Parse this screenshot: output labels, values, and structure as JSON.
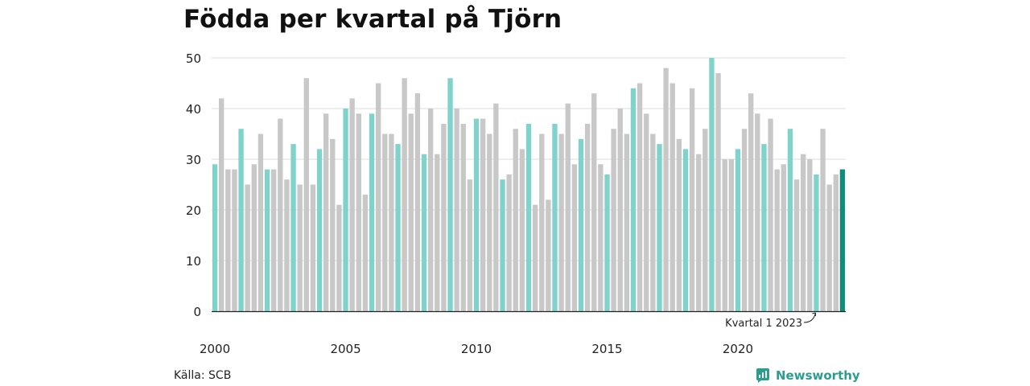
{
  "title": "Födda per kvartal på Tjörn",
  "source": "Källa: SCB",
  "brand": {
    "name": "Newsworthy",
    "logo_icon": "newsworthy-logo-icon",
    "color": "#2a9d8f"
  },
  "annotation": "Kvartal 1 2023",
  "colors": {
    "q1": "#7fd3cb",
    "other": "#c8c8c8",
    "highlight": "#148a7d",
    "grid": "#dddddd",
    "axis": "#222222"
  },
  "chart_data": {
    "type": "bar",
    "title": "Födda per kvartal på Tjörn",
    "xlabel": "",
    "ylabel": "",
    "ylim": [
      0,
      50
    ],
    "yticks": [
      0,
      10,
      20,
      30,
      40,
      50
    ],
    "xtick_labels": [
      "2000",
      "2005",
      "2010",
      "2015",
      "2020"
    ],
    "grid": true,
    "start_year": 2000,
    "highlighted": "Kvartal 1 2023",
    "values": [
      29,
      42,
      28,
      28,
      36,
      25,
      29,
      35,
      28,
      28,
      38,
      26,
      33,
      25,
      46,
      25,
      32,
      39,
      34,
      21,
      40,
      42,
      39,
      23,
      39,
      45,
      35,
      35,
      33,
      46,
      39,
      43,
      31,
      40,
      31,
      37,
      46,
      40,
      37,
      26,
      38,
      38,
      35,
      41,
      26,
      27,
      36,
      32,
      37,
      21,
      35,
      22,
      37,
      35,
      41,
      29,
      34,
      37,
      43,
      29,
      27,
      36,
      40,
      35,
      44,
      45,
      39,
      35,
      33,
      48,
      45,
      34,
      32,
      44,
      31,
      36,
      50,
      47,
      30,
      30,
      32,
      36,
      43,
      39,
      33,
      38,
      28,
      29,
      36,
      26,
      31,
      30,
      27,
      36,
      25,
      27,
      28
    ]
  }
}
